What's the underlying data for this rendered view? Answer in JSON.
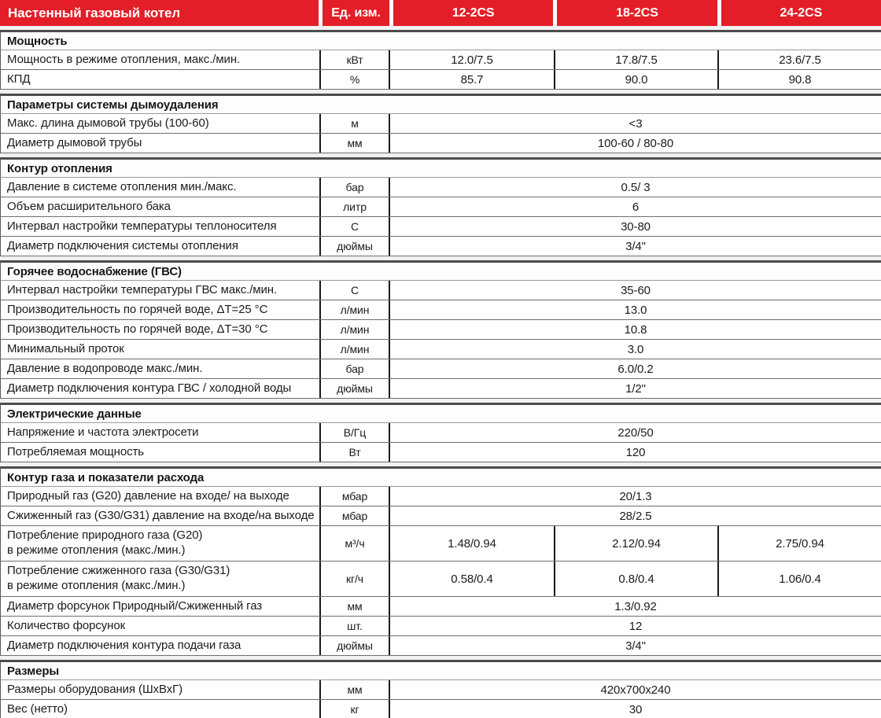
{
  "colors": {
    "brand_red": "#e31e28",
    "header_text": "#ffffff"
  },
  "header": {
    "title": "Настенный газовый котел",
    "unit_label": "Ед. изм.",
    "models": [
      "12-2CS",
      "18-2CS",
      "24-2CS"
    ]
  },
  "sections": [
    {
      "title": "Мощность",
      "rows": [
        {
          "param": "Мощность в режиме отопления, макс./мин.",
          "unit": "кВт",
          "values": [
            "12.0/7.5",
            "17.8/7.5",
            "23.6/7.5"
          ]
        },
        {
          "param": "КПД",
          "unit": "%",
          "values": [
            "85.7",
            "90.0",
            "90.8"
          ]
        }
      ]
    },
    {
      "title": "Параметры системы дымоудаления",
      "rows": [
        {
          "param": "Макс. длина дымовой трубы (100-60)",
          "unit": "м",
          "merged": "<3"
        },
        {
          "param": "Диаметр дымовой трубы",
          "unit": "мм",
          "merged": "100-60 / 80-80"
        }
      ]
    },
    {
      "title": "Контур отопления",
      "rows": [
        {
          "param": "Давление в системе отопления мин./макс.",
          "unit": "бар",
          "merged": "0.5/ 3"
        },
        {
          "param": "Объем расширительного бака",
          "unit": "литр",
          "merged": "6"
        },
        {
          "param": "Интервал настройки температуры теплоносителя",
          "unit": "С",
          "merged": "30-80"
        },
        {
          "param": "Диаметр подключения системы отопления",
          "unit": "дюймы",
          "merged": "3/4\""
        }
      ]
    },
    {
      "title": "Горячее водоснабжение (ГВС)",
      "rows": [
        {
          "param": "Интервал настройки температуры ГВС макс./мин.",
          "unit": "С",
          "merged": "35-60"
        },
        {
          "param": "Производительность по горячей воде, ΔT=25 °С",
          "unit": "л/мин",
          "merged": "13.0"
        },
        {
          "param": "Производительность по горячей воде, ΔT=30 °С",
          "unit": "л/мин",
          "merged": "10.8"
        },
        {
          "param": "Минимальный проток",
          "unit": "л/мин",
          "merged": "3.0"
        },
        {
          "param": "Давление в водопроводе макс./мин.",
          "unit": "бар",
          "merged": "6.0/0.2"
        },
        {
          "param": "Диаметр подключения контура ГВС / холодной воды",
          "unit": "дюймы",
          "merged": "1/2\""
        }
      ]
    },
    {
      "title": "Электрические данные",
      "rows": [
        {
          "param": "Напряжение и частота электросети",
          "unit": "В/Гц",
          "merged": "220/50"
        },
        {
          "param": "Потребляемая мощность",
          "unit": "Вт",
          "merged": "120"
        }
      ]
    },
    {
      "title": "Контур газа и показатели расхода",
      "rows": [
        {
          "param": "Природный газ (G20) давление на входе/ на выходе",
          "unit": "мбар",
          "merged": "20/1.3"
        },
        {
          "param": "Сжиженный газ (G30/G31) давление на входе/на выходе",
          "unit": "мбар",
          "merged": "28/2.5"
        },
        {
          "param": "Потребление природного газа (G20)\nв режиме отопления (макс./мин.)",
          "unit": "м³/ч",
          "values": [
            "1.48/0.94",
            "2.12/0.94",
            "2.75/0.94"
          ],
          "tall": true
        },
        {
          "param": "Потребление сжиженного газа (G30/G31)\nв режиме отопления (макс./мин.)",
          "unit": "кг/ч",
          "values": [
            "0.58/0.4",
            "0.8/0.4",
            "1.06/0.4"
          ],
          "tall": true
        },
        {
          "param": "Диаметр форсунок Природный/Сжиженный газ",
          "unit": "мм",
          "merged": "1.3/0.92"
        },
        {
          "param": "Количество форсунок",
          "unit": "шт.",
          "merged": "12"
        },
        {
          "param": "Диаметр подключения контура подачи газа",
          "unit": "дюймы",
          "merged": "3/4\""
        }
      ]
    },
    {
      "title": "Размеры",
      "rows": [
        {
          "param": "Размеры оборудования (ШхВхГ)",
          "unit": "мм",
          "merged": "420х700х240"
        },
        {
          "param": "Вес (нетто)",
          "unit": "кг",
          "merged": "30"
        }
      ]
    }
  ]
}
